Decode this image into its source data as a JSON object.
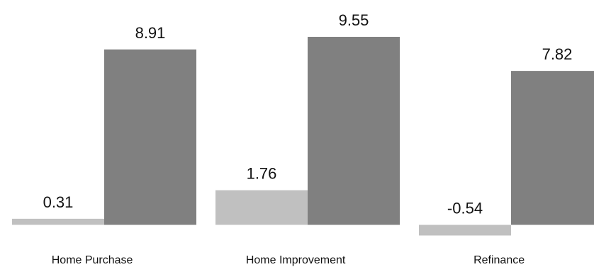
{
  "chart_data": {
    "type": "bar",
    "categories": [
      "Home Purchase",
      "Home Improvement",
      "Refinance"
    ],
    "series": [
      {
        "values": [
          0.31,
          1.76,
          -0.54
        ],
        "color": "#c0c0c0"
      },
      {
        "values": [
          8.91,
          9.55,
          7.82
        ],
        "color": "#808080"
      }
    ],
    "data_labels": [
      [
        "0.31",
        "8.91"
      ],
      [
        "1.76",
        "9.55"
      ],
      [
        "-0.54",
        "7.82"
      ]
    ],
    "ylim": [
      -0.54,
      9.55
    ],
    "grid": false,
    "legend": "none",
    "title": "",
    "xlabel": "",
    "ylabel": ""
  }
}
